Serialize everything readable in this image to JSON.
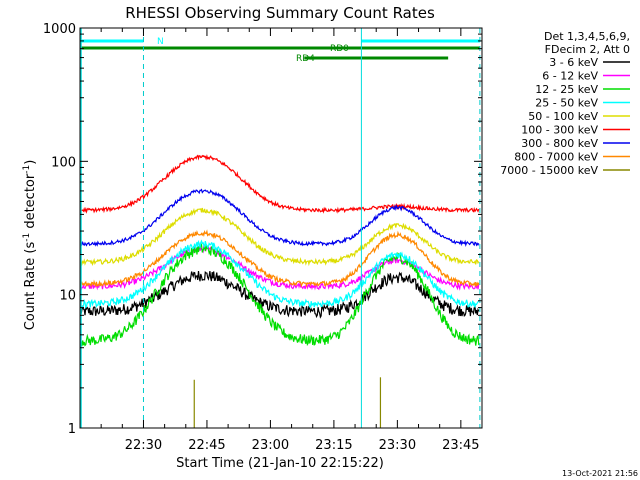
{
  "chart_data": {
    "type": "line",
    "title": "RHESSI Observing Summary Count Rates",
    "xlabel": "Start Time (21-Jan-10 22:15:22)",
    "ylabel_main": "Count Rate (s",
    "ylabel_sup1": "-1",
    "ylabel_mid": " detector",
    "ylabel_sup2": "-1",
    "ylabel_end": ")",
    "yscale": "log",
    "ylim": [
      1,
      1000
    ],
    "xlim_minutes": [
      0,
      95
    ],
    "x_ticks": [
      {
        "m": 15,
        "label": "22:30"
      },
      {
        "m": 30,
        "label": "22:45"
      },
      {
        "m": 45,
        "label": "23:00"
      },
      {
        "m": 60,
        "label": "23:15"
      },
      {
        "m": 75,
        "label": "23:30"
      },
      {
        "m": 90,
        "label": "23:45"
      }
    ],
    "y_ticks": [
      {
        "v": 1,
        "label": "1"
      },
      {
        "v": 10,
        "label": "10"
      },
      {
        "v": 100,
        "label": "100"
      },
      {
        "v": 1000,
        "label": "1000"
      }
    ],
    "legend_header": [
      "Det 1,3,4,5,6,9,",
      "FDecim 2, Att 0"
    ],
    "series": [
      {
        "name": "3 - 6 keV",
        "color": "#000000",
        "base": 7.5,
        "peak1": 14,
        "peak2": 13.5,
        "noise": 0.1
      },
      {
        "name": "6 - 12 keV",
        "color": "#ff00ff",
        "base": 11.5,
        "peak1": 22,
        "peak2": 18,
        "noise": 0.05
      },
      {
        "name": "12 - 25 keV",
        "color": "#00dd00",
        "base": 4.5,
        "peak1": 22,
        "peak2": 19,
        "noise": 0.09
      },
      {
        "name": "25 - 50 keV",
        "color": "#00ffff",
        "base": 8.5,
        "peak1": 24,
        "peak2": 20,
        "noise": 0.06
      },
      {
        "name": "50 - 100 keV",
        "color": "#dddd00",
        "base": 17.5,
        "peak1": 43,
        "peak2": 33,
        "noise": 0.04
      },
      {
        "name": "100 - 300 keV",
        "color": "#ff0000",
        "base": 43,
        "peak1": 108,
        "peak2": 46,
        "noise": 0.03
      },
      {
        "name": "300 - 800 keV",
        "color": "#0000ee",
        "base": 24,
        "peak1": 60,
        "peak2": 45,
        "noise": 0.03
      },
      {
        "name": "800 - 7000 keV",
        "color": "#ff8800",
        "base": 12,
        "peak1": 29,
        "peak2": 28,
        "noise": 0.04
      },
      {
        "name": "7000 - 15000 keV",
        "color": "#888800",
        "base": 0,
        "peak1": 0,
        "peak2": 0,
        "noise": 0
      }
    ],
    "flag_bars": [
      {
        "label": "N",
        "color": "#00ffff",
        "segments": [
          [
            0,
            15
          ],
          [
            66.5,
            94.5
          ]
        ],
        "level": 1
      },
      {
        "label": "RD0",
        "color": "#008800",
        "segments": [
          [
            0,
            94.5
          ]
        ],
        "level": 2
      },
      {
        "label": "RD4",
        "color": "#008800",
        "segments": [
          [
            53,
            87
          ]
        ],
        "level": 3
      }
    ],
    "saa_dashed_lines": [
      15,
      94.5
    ],
    "saa_solid_lines": [
      66.5
    ],
    "timestamp": "13-Oct-2021 21:56"
  }
}
